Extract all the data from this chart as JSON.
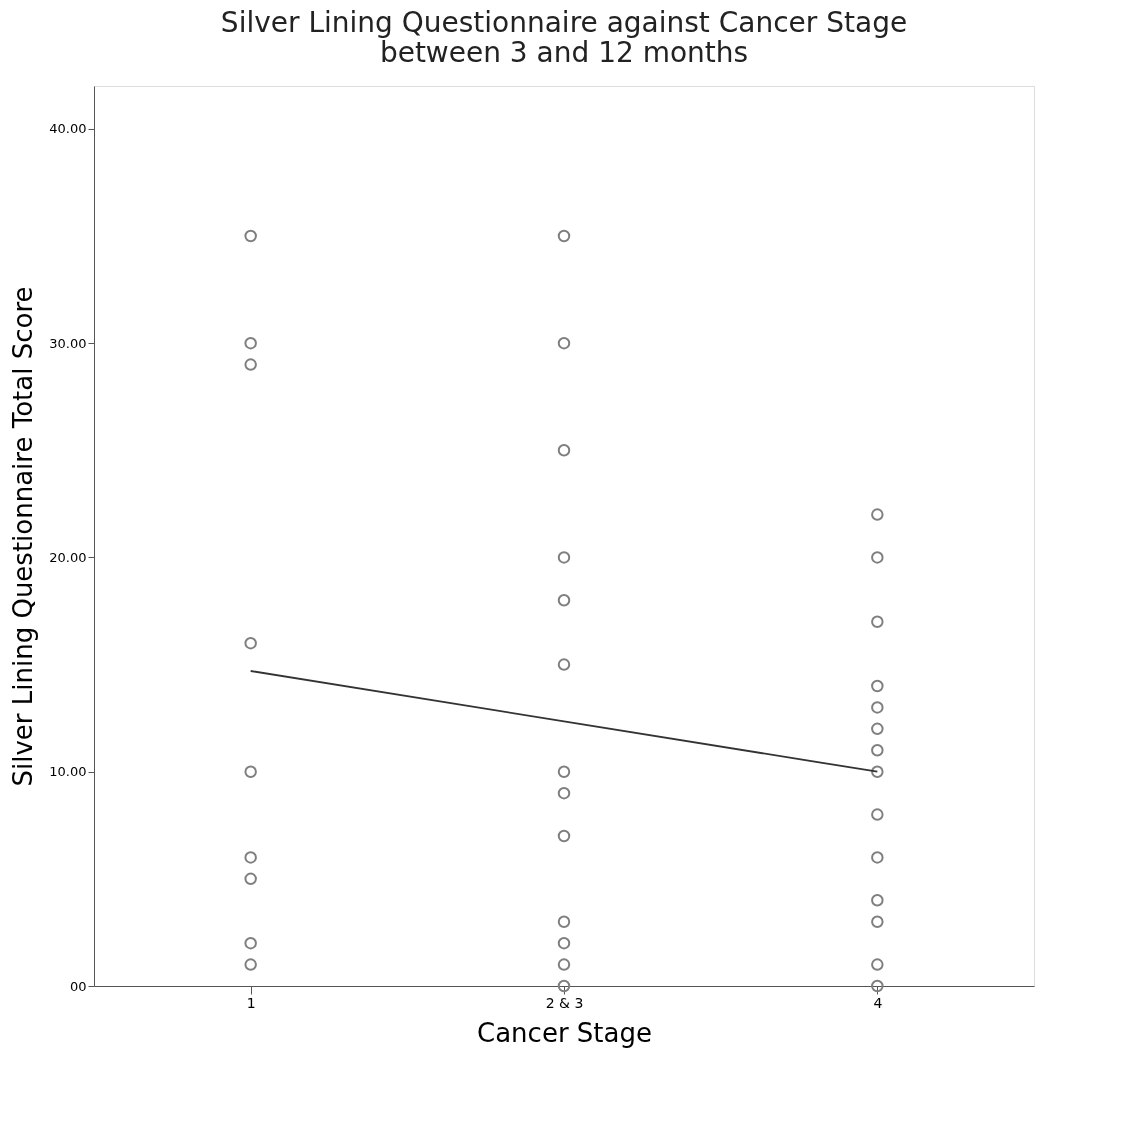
{
  "chart_data": {
    "type": "scatter",
    "title": "Silver Lining Questionnaire against Cancer Stage\nbetween 3 and 12 months",
    "xlabel": "Cancer Stage",
    "ylabel": "Silver Lining Questionnaire Total Score",
    "categories": [
      "1",
      "2 & 3",
      "4"
    ],
    "ylim": [
      0,
      42
    ],
    "yticks": [
      {
        "value": 0,
        "label": "00"
      },
      {
        "value": 10,
        "label": "10.00"
      },
      {
        "value": 20,
        "label": "20.00"
      },
      {
        "value": 30,
        "label": "30.00"
      },
      {
        "value": 40,
        "label": "40.00"
      }
    ],
    "grid": false,
    "series": [
      {
        "type": "scatter",
        "marker": "circle",
        "color": "#7f7f7f",
        "x": [
          "1",
          "1",
          "1",
          "1",
          "1",
          "1",
          "1",
          "1",
          "1",
          "2 & 3",
          "2 & 3",
          "2 & 3",
          "2 & 3",
          "2 & 3",
          "2 & 3",
          "2 & 3",
          "2 & 3",
          "2 & 3",
          "2 & 3",
          "2 & 3",
          "2 & 3",
          "2 & 3",
          "4",
          "4",
          "4",
          "4",
          "4",
          "4",
          "4",
          "4",
          "4",
          "4",
          "4",
          "4",
          "4",
          "4"
        ],
        "values": [
          35,
          30,
          29,
          16,
          10,
          6,
          5,
          2,
          1,
          35,
          30,
          25,
          20,
          18,
          15,
          10,
          9,
          7,
          3,
          2,
          1,
          0,
          22,
          20,
          17,
          14,
          13,
          12,
          11,
          10,
          8,
          6,
          4,
          3,
          1,
          0
        ]
      },
      {
        "type": "line",
        "color": "#333333",
        "x": [
          "1",
          "2 & 3",
          "4"
        ],
        "values": [
          14.7,
          12.35,
          10.0
        ]
      }
    ]
  }
}
